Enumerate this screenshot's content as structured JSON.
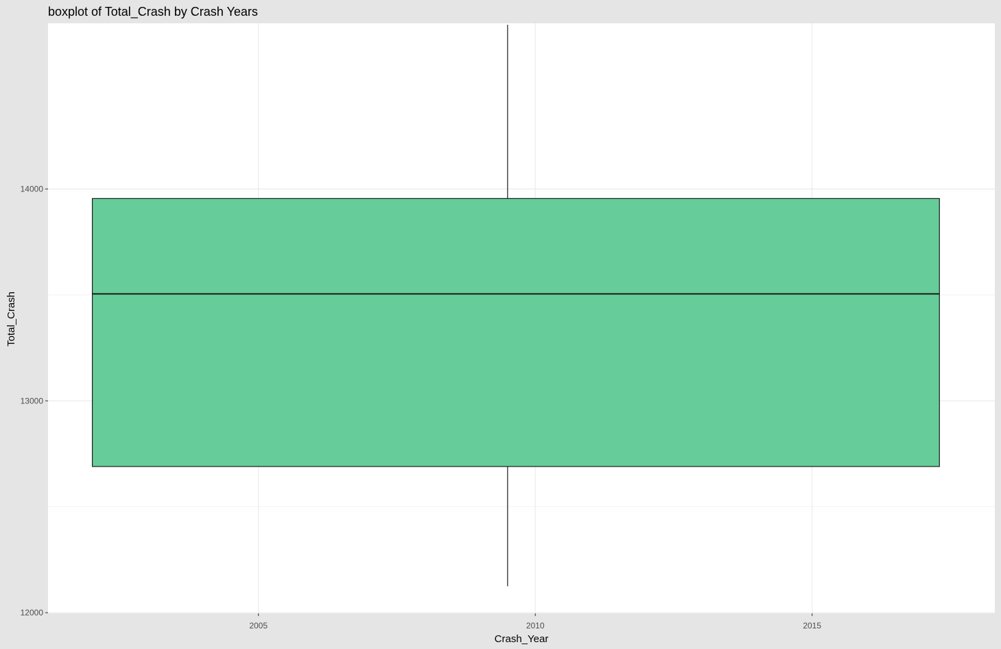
{
  "chart_data": {
    "type": "boxplot",
    "title": "boxplot of Total_Crash by Crash Years",
    "xlabel": "Crash_Year",
    "ylabel": "Total_Crash",
    "xlim": [
      2001.2,
      2018.3
    ],
    "ylim": [
      11997,
      14782
    ],
    "x_ticks": [
      2005,
      2010,
      2015
    ],
    "y_ticks": [
      12000,
      13000,
      14000
    ],
    "grid": true,
    "colors": {
      "background": "#e5e5e5",
      "panel": "#ffffff",
      "grid": "#ebebeb",
      "box_fill": "#66cc99",
      "box_stroke": "#1a1a1a",
      "text": "#000000",
      "tick_text": "#4d4d4d"
    },
    "box": {
      "x_min": 2002.0,
      "x_max": 2017.3,
      "x_center": 2009.5,
      "whisker_low": 12125,
      "q1": 12690,
      "median": 13505,
      "q3": 13955,
      "whisker_high": 14775
    }
  }
}
